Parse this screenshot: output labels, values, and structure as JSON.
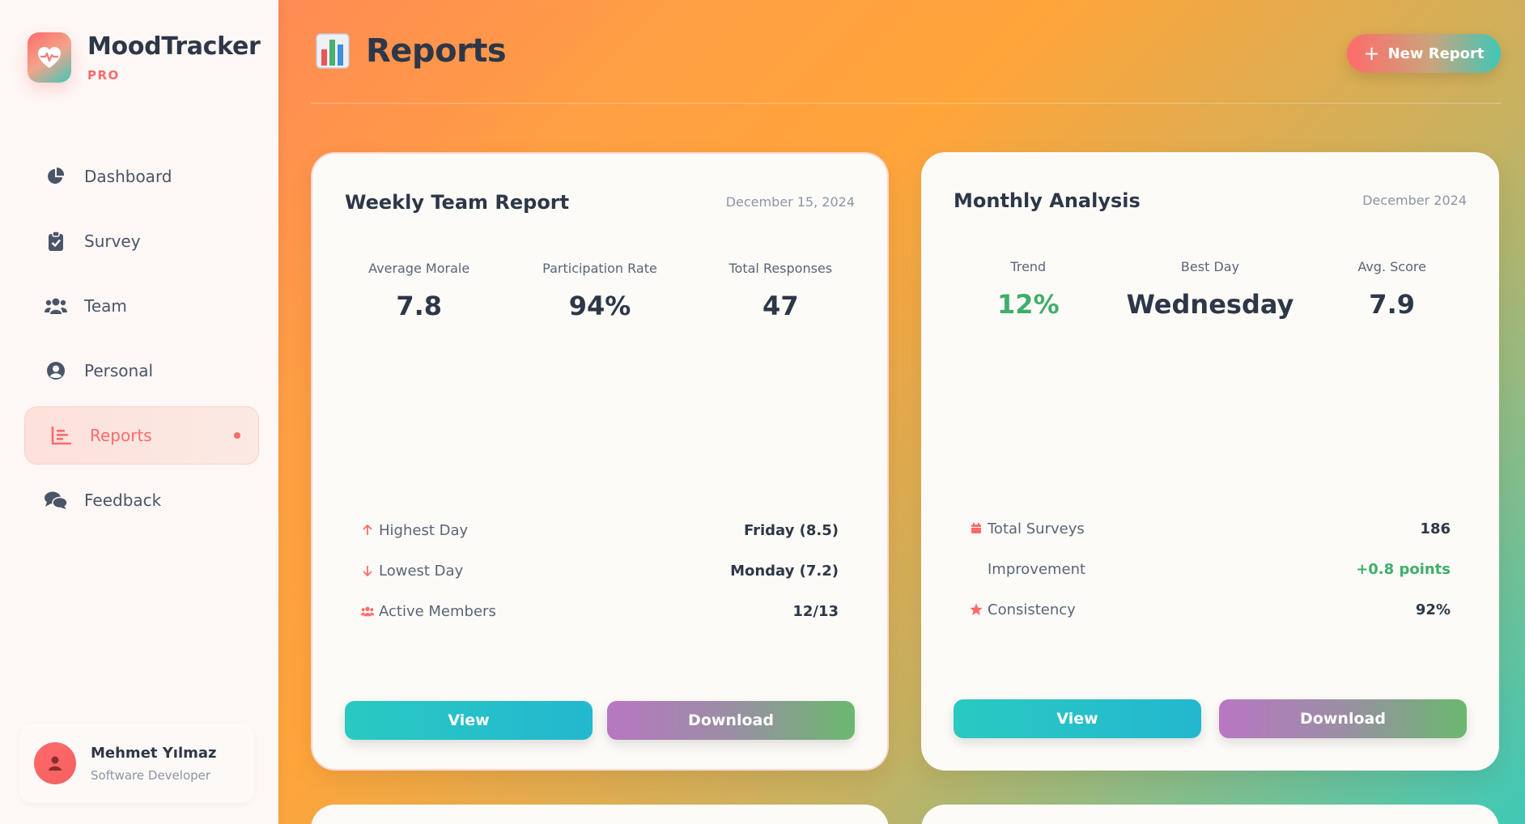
{
  "brand": {
    "name": "MoodTracker",
    "badge": "PRO"
  },
  "nav": {
    "items": [
      {
        "label": "Dashboard",
        "icon": "pie-chart-icon"
      },
      {
        "label": "Survey",
        "icon": "clipboard-check-icon"
      },
      {
        "label": "Team",
        "icon": "users-icon"
      },
      {
        "label": "Personal",
        "icon": "user-circle-icon"
      },
      {
        "label": "Reports",
        "icon": "bar-chart-icon",
        "active": true
      },
      {
        "label": "Feedback",
        "icon": "comments-icon"
      }
    ]
  },
  "user": {
    "name": "Mehmet Yılmaz",
    "role": "Software Developer"
  },
  "header": {
    "title": "Reports",
    "new_report_label": "New Report"
  },
  "cards": [
    {
      "title": "Weekly Team Report",
      "date": "December 15, 2024",
      "stats": [
        {
          "label": "Average Morale",
          "value": "7.8"
        },
        {
          "label": "Participation Rate",
          "value": "94%"
        },
        {
          "label": "Total Responses",
          "value": "47"
        }
      ],
      "details": [
        {
          "label": "Highest Day",
          "value": "Friday (8.5)",
          "icon": "arrow-up-icon"
        },
        {
          "label": "Lowest Day",
          "value": "Monday (7.2)",
          "icon": "arrow-down-icon"
        },
        {
          "label": "Active Members",
          "value": "12/13",
          "icon": "users-icon"
        }
      ],
      "view_label": "View",
      "download_label": "Download"
    },
    {
      "title": "Monthly Analysis",
      "date": "December 2024",
      "stats": [
        {
          "label": "Trend",
          "value": "12%"
        },
        {
          "label": "Best Day",
          "value": "Wednesday"
        },
        {
          "label": "Avg. Score",
          "value": "7.9"
        }
      ],
      "details": [
        {
          "label": "Total Surveys",
          "value": "186",
          "icon": "calendar-icon"
        },
        {
          "label": "Improvement",
          "value": "+0.8 points"
        },
        {
          "label": "Consistency",
          "value": "92%",
          "icon": "star-icon"
        }
      ],
      "view_label": "View",
      "download_label": "Download"
    }
  ],
  "colors": {
    "accent": "#ff6b6b",
    "teal": "#3fc7b8",
    "positive": "#3fae6b",
    "text": "#2d3748"
  }
}
